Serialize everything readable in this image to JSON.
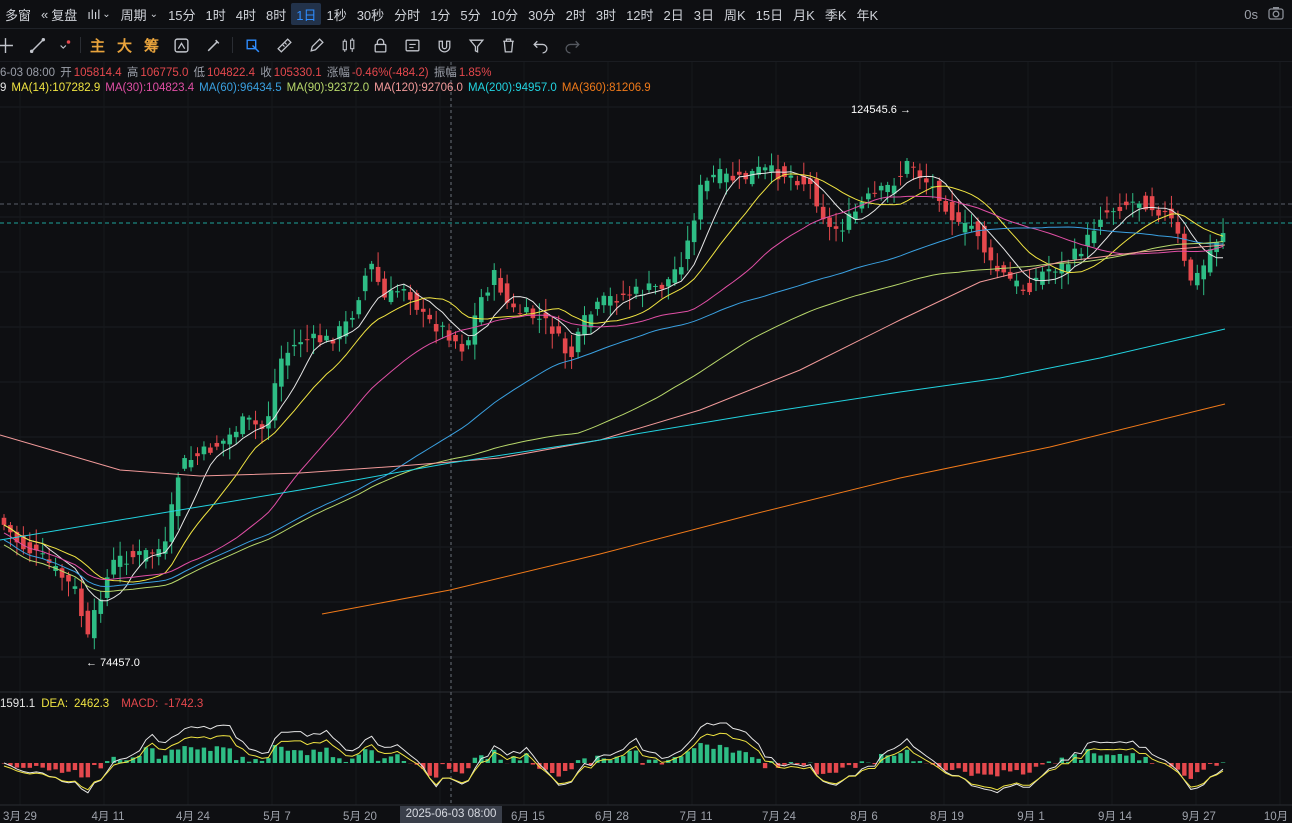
{
  "toolbar": {
    "multi_window": "多窗",
    "adjust": "复盘",
    "period": "周期",
    "intervals": [
      "15分",
      "1时",
      "4时",
      "8时",
      "1日",
      "1秒",
      "30秒",
      "分时",
      "1分",
      "5分",
      "10分",
      "30分",
      "2时",
      "3时",
      "12时",
      "2日",
      "3日",
      "周K",
      "15日",
      "月K",
      "季K",
      "年K"
    ],
    "active_interval": "1日",
    "timer": "0s"
  },
  "drawing_tools": {
    "labels": [
      "主",
      "大",
      "筹"
    ],
    "icons": [
      "crosshair-icon",
      "line-icon",
      "dot-menu-icon",
      "indicator-icon",
      "brush-icon",
      "select-icon",
      "ruler-icon",
      "pen-icon",
      "candles-icon",
      "lock-icon",
      "template-icon",
      "magnet-icon",
      "filter-icon",
      "trash-icon",
      "undo-icon",
      "redo-icon"
    ]
  },
  "ohlc": {
    "date": "6-03 08:00",
    "open_label": "开",
    "open": "105814.4",
    "high_label": "高",
    "high": "106775.0",
    "low_label": "低",
    "low": "104822.4",
    "close_label": "收",
    "close": "105330.1",
    "change_label": "涨幅",
    "change": "-0.46%(-484.2)",
    "amp_label": "振幅",
    "amp": "1.85%"
  },
  "ma": [
    {
      "label": "9",
      "color": "#e6e6e6"
    },
    {
      "label": "MA(14):107282.9",
      "color": "#f0e442"
    },
    {
      "label": "MA(30):104823.4",
      "color": "#e04fa5"
    },
    {
      "label": "MA(60):96434.5",
      "color": "#3aa0e0"
    },
    {
      "label": "MA(90):92372.0",
      "color": "#b8d86b"
    },
    {
      "label": "MA(120):92706.0",
      "color": "#f29a9a"
    },
    {
      "label": "MA(200):94957.0",
      "color": "#22d3e0"
    },
    {
      "label": "MA(360):81206.9",
      "color": "#f07a1a"
    }
  ],
  "macd": {
    "dif": "1591.1",
    "dea_label": "DEA:",
    "dea": "2462.3",
    "macd_label": "MACD:",
    "macd": "-1742.3"
  },
  "annotations": {
    "high": "124545.6",
    "low": "74457.0"
  },
  "x_axis": {
    "labels": [
      "3月 29",
      "4月 11",
      "4月 24",
      "5月 7",
      "5月 20",
      "6月 15",
      "6月 28",
      "7月 11",
      "7月 24",
      "8月 6",
      "8月 19",
      "9月 1",
      "9月 14",
      "9月 27",
      "10月"
    ],
    "crosshair": "2025-06-03 08:00"
  },
  "colors": {
    "up": "#2ebd85",
    "down": "#e5484d",
    "bg": "#0e0f12",
    "accent": "#2f8dff"
  }
}
